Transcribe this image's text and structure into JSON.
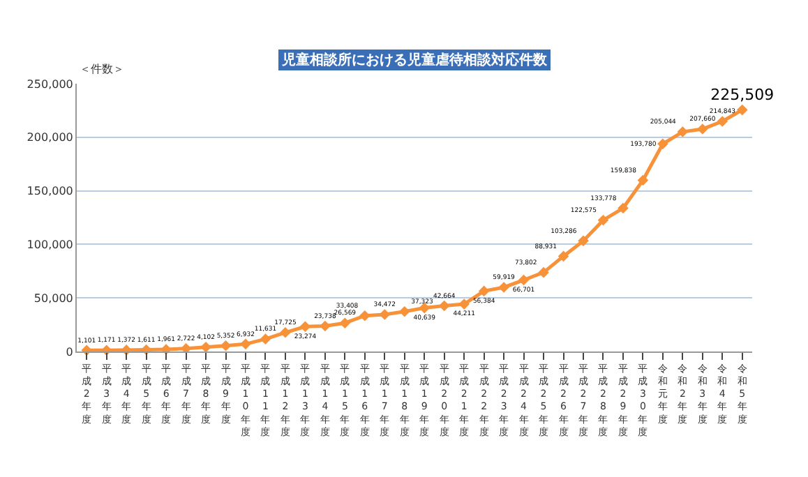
{
  "chart_data": {
    "type": "line",
    "title": "児童相談所における児童虐待相談対応件数",
    "ylabel": "＜件数＞",
    "categories": [
      "平成2年度",
      "平成3年度",
      "平成4年度",
      "平成5年度",
      "平成6年度",
      "平成7年度",
      "平成8年度",
      "平成9年度",
      "平成10年度",
      "平成11年度",
      "平成12年度",
      "平成13年度",
      "平成14年度",
      "平成15年度",
      "平成16年度",
      "平成17年度",
      "平成18年度",
      "平成19年度",
      "平成20年度",
      "平成21年度",
      "平成22年度",
      "平成23年度",
      "平成24年度",
      "平成25年度",
      "平成26年度",
      "平成27年度",
      "平成28年度",
      "平成29年度",
      "平成30年度",
      "令和元年度",
      "令和2年度",
      "令和3年度",
      "令和4年度",
      "令和5年度"
    ],
    "series": [
      {
        "color": "#f79239",
        "values": [
          1101,
          1171,
          1372,
          1611,
          1961,
          2722,
          4102,
          5352,
          6932,
          11631,
          17725,
          23274,
          23738,
          26569,
          33408,
          34472,
          37323,
          40639,
          42664,
          44211,
          56384,
          59919,
          66701,
          73802,
          88931,
          103286,
          122575,
          133778,
          159838,
          193780,
          205044,
          207660,
          214843,
          225509
        ],
        "value_labels": [
          "1,101",
          "1,171",
          "1,372",
          "1,611",
          "1,961",
          "2,722",
          "4,102",
          "5,352",
          "6,932",
          "11,631",
          "17,725",
          "23,274",
          "23,738",
          "26,569",
          "33,408",
          "34,472",
          "37,323",
          "40,639",
          "42,664",
          "44,211",
          "56,384",
          "59,919",
          "66,701",
          "73,802",
          "88,931",
          "103,286",
          "122,575",
          "133,778",
          "159,838",
          "193,780",
          "205,044",
          "207,660",
          "214,843",
          "225,509"
        ]
      }
    ],
    "ylim": [
      0,
      250000
    ],
    "yticks": [
      {
        "value": 0,
        "label": "0"
      },
      {
        "value": 50000,
        "label": "50,000"
      },
      {
        "value": 100000,
        "label": "100,000"
      },
      {
        "value": 150000,
        "label": "150,000"
      },
      {
        "value": 200000,
        "label": "200,000"
      },
      {
        "value": 250000,
        "label": "250,000"
      }
    ],
    "grid": "y",
    "marker": "diamond",
    "line_style": "solid"
  }
}
